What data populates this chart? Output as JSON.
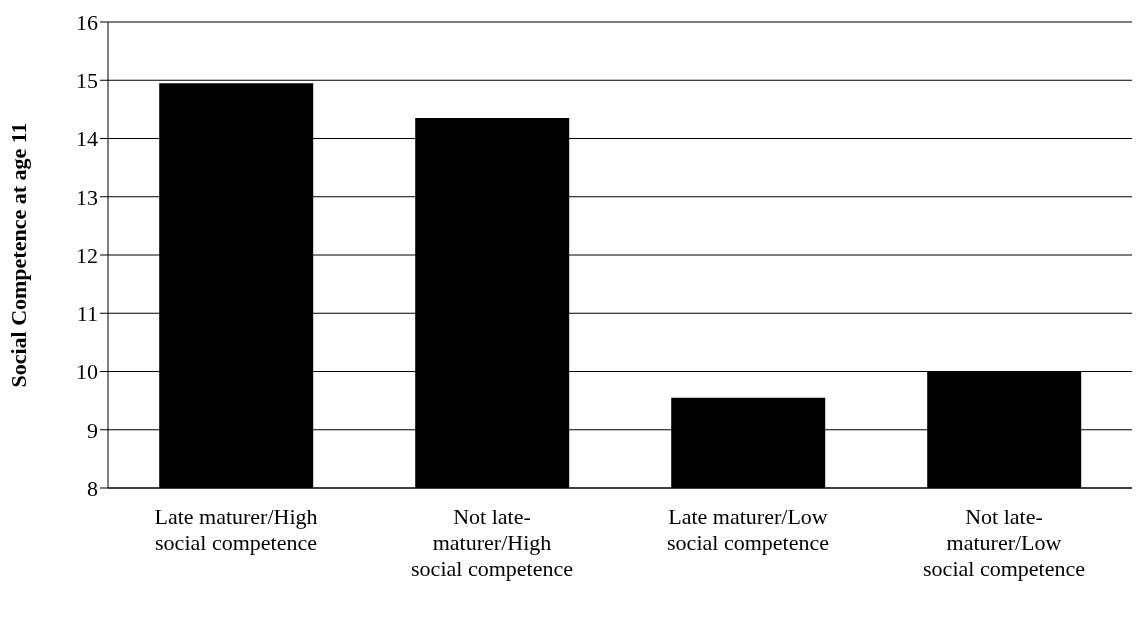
{
  "chart_data": {
    "type": "bar",
    "ylabel": "Social Competence at age 11",
    "categories": [
      "Late maturer/High social competence",
      "Not late-maturer/High social competence",
      "Late maturer/Low social competence",
      "Not late-maturer/Low social competence"
    ],
    "values": [
      14.95,
      14.35,
      9.55,
      10.0
    ],
    "color": "#000000",
    "ylim": [
      8,
      16
    ],
    "yticks": [
      8,
      9,
      10,
      11,
      12,
      13,
      14,
      15,
      16
    ],
    "grid": "y"
  }
}
